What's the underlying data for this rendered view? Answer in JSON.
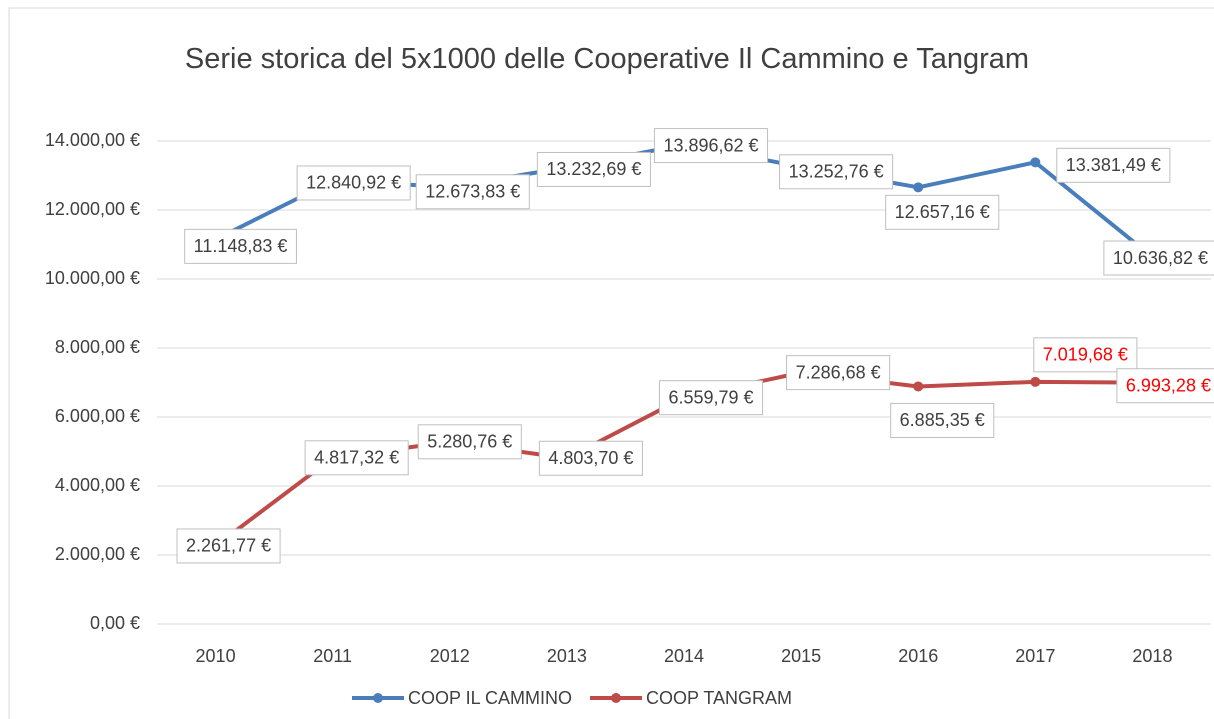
{
  "chart_data": {
    "type": "line",
    "title": "Serie storica del 5x1000 delle Cooperative Il Cammino e Tangram",
    "categories": [
      "2010",
      "2011",
      "2012",
      "2013",
      "2014",
      "2015",
      "2016",
      "2017",
      "2018"
    ],
    "series": [
      {
        "name": "COOP IL CAMMINO",
        "color": "#4a7ebb",
        "values": [
          11148.83,
          12840.92,
          12673.83,
          13232.69,
          13896.62,
          13252.76,
          12657.16,
          13381.49,
          10636.82
        ],
        "value_labels": [
          "11.148,83 €",
          "12.840,92 €",
          "12.673,83 €",
          "13.232,69 €",
          "13.896,62 €",
          "13.252,76 €",
          "12.657,16 €",
          "13.381,49 €",
          "10.636,82 €"
        ],
        "label_colors": [
          "#404040",
          "#404040",
          "#404040",
          "#404040",
          "#404040",
          "#404040",
          "#404040",
          "#404040",
          "#404040"
        ]
      },
      {
        "name": "COOP TANGRAM",
        "color": "#be4b48",
        "values": [
          2261.77,
          4817.32,
          5280.76,
          4803.7,
          6559.79,
          7286.68,
          6885.35,
          7019.68,
          6993.28
        ],
        "value_labels": [
          "2.261,77 €",
          "4.817,32 €",
          "5.280,76 €",
          "4.803,70 €",
          "6.559,79 €",
          "7.286,68 €",
          "6.885,35 €",
          "7.019,68 €",
          "6.993,28 €"
        ],
        "label_colors": [
          "#404040",
          "#404040",
          "#404040",
          "#404040",
          "#404040",
          "#404040",
          "#404040",
          "#ff0000",
          "#ff0000"
        ]
      }
    ],
    "ylim": [
      0,
      14000
    ],
    "yticks": [
      {
        "value": 0,
        "label": "0,00 €"
      },
      {
        "value": 2000,
        "label": "2.000,00 €"
      },
      {
        "value": 4000,
        "label": "4.000,00 €"
      },
      {
        "value": 6000,
        "label": "6.000,00 €"
      },
      {
        "value": 8000,
        "label": "8.000,00 €"
      },
      {
        "value": 10000,
        "label": "10.000,00 €"
      },
      {
        "value": 12000,
        "label": "12.000,00 €"
      },
      {
        "value": 14000,
        "label": "14.000,00 €"
      }
    ],
    "grid": true,
    "legend": "bottom"
  }
}
